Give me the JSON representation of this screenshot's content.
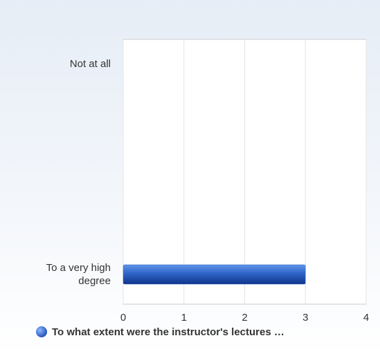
{
  "chart_data": {
    "type": "bar",
    "orientation": "horizontal",
    "categories": [
      "Not at all",
      "To a very high degree"
    ],
    "series": [
      {
        "name": "To what extent were the instructor's lectures …",
        "color": "#2f64c8",
        "values": [
          0,
          3
        ]
      }
    ],
    "xlim": [
      0,
      4
    ],
    "xticks": [
      0,
      1,
      2,
      3,
      4
    ],
    "grid": true,
    "legend": "bottom"
  }
}
